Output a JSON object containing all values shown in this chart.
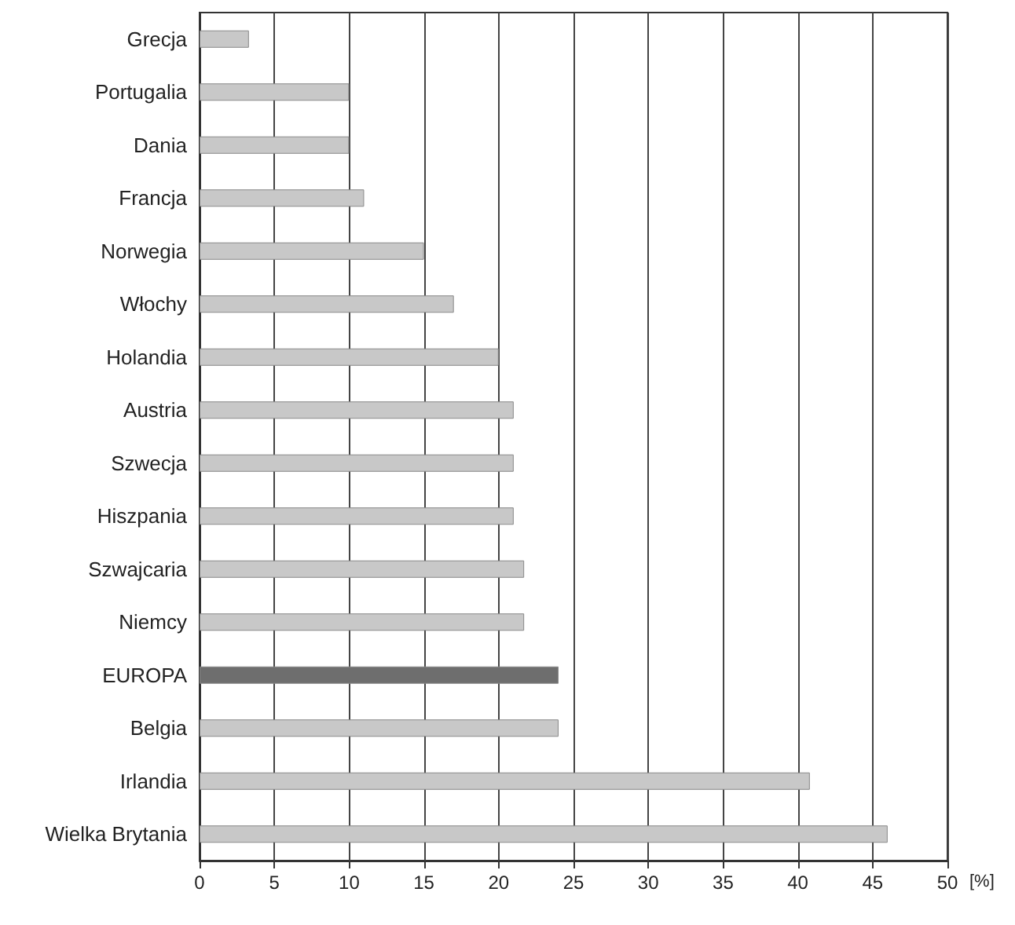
{
  "chart_data": {
    "type": "bar",
    "orientation": "horizontal",
    "xlabel": "[%]",
    "categories": [
      "Grecja",
      "Portugalia",
      "Dania",
      "Francja",
      "Norwegia",
      "Włochy",
      "Holandia",
      "Austria",
      "Szwecja",
      "Hiszpania",
      "Szwajcaria",
      "Niemcy",
      "EUROPA",
      "Belgia",
      "Irlandia",
      "Wielka Brytania"
    ],
    "values": [
      3.3,
      10,
      10,
      11,
      15,
      17,
      20,
      21,
      21,
      21,
      21.7,
      21.7,
      24,
      24,
      40.8,
      46
    ],
    "colors": [
      "#c8c8c8",
      "#c8c8c8",
      "#c8c8c8",
      "#c8c8c8",
      "#c8c8c8",
      "#c8c8c8",
      "#c8c8c8",
      "#c8c8c8",
      "#c8c8c8",
      "#c8c8c8",
      "#c8c8c8",
      "#c8c8c8",
      "#6e6e6e",
      "#c8c8c8",
      "#c8c8c8",
      "#c8c8c8"
    ],
    "xlim": [
      0,
      50
    ],
    "xticks": [
      0,
      5,
      10,
      15,
      20,
      25,
      30,
      35,
      40,
      45,
      50
    ],
    "grid": "x"
  }
}
